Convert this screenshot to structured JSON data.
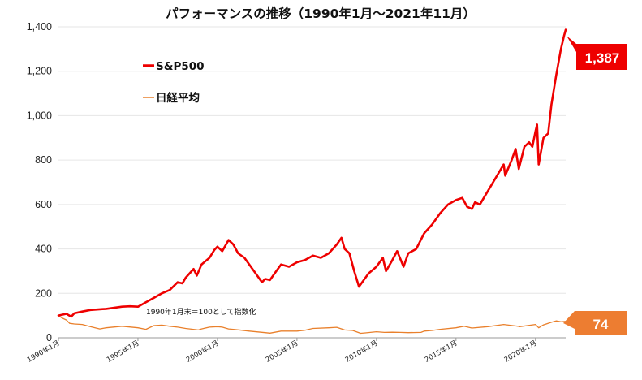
{
  "chart_data": {
    "type": "line",
    "title": "パフォーマンスの推移（1990年1月～2021年11月）",
    "note": "1990年1月末＝100として指数化",
    "ylim": [
      0,
      1400
    ],
    "yticks": [
      "0",
      "200",
      "400",
      "600",
      "800",
      "1,000",
      "1,200",
      "1,400"
    ],
    "ytick_values": [
      0,
      200,
      400,
      600,
      800,
      1000,
      1200,
      1400
    ],
    "xlim": [
      1990.0,
      2021.9
    ],
    "xticks": [
      "1990年1月",
      "1995年1月",
      "2000年1月",
      "2005年1月",
      "2010年1月",
      "2015年1月",
      "2020年1月"
    ],
    "xtick_values": [
      1990.0,
      1995.0,
      2000.0,
      2005.0,
      2010.0,
      2015.0,
      2020.0
    ],
    "legend_position": "top-left",
    "series": [
      {
        "name": "S&P500",
        "color": "#ee0000",
        "end_label": "1,387",
        "x": [
          1990.0,
          1990.5,
          1990.8,
          1991.0,
          1991.5,
          1992.0,
          1993.0,
          1994.0,
          1994.5,
          1995.0,
          1995.5,
          1996.0,
          1996.5,
          1997.0,
          1997.5,
          1997.8,
          1998.0,
          1998.5,
          1998.7,
          1999.0,
          1999.5,
          1999.8,
          2000.0,
          2000.3,
          2000.7,
          2001.0,
          2001.3,
          2001.7,
          2002.0,
          2002.5,
          2002.8,
          2003.0,
          2003.3,
          2003.7,
          2004.0,
          2004.5,
          2005.0,
          2005.5,
          2006.0,
          2006.5,
          2007.0,
          2007.5,
          2007.8,
          2008.0,
          2008.3,
          2008.6,
          2008.9,
          2009.2,
          2009.5,
          2010.0,
          2010.4,
          2010.6,
          2011.0,
          2011.3,
          2011.7,
          2012.0,
          2012.5,
          2013.0,
          2013.5,
          2014.0,
          2014.5,
          2015.0,
          2015.4,
          2015.7,
          2016.0,
          2016.2,
          2016.5,
          2017.0,
          2017.5,
          2018.0,
          2018.1,
          2018.5,
          2018.75,
          2018.95,
          2019.3,
          2019.6,
          2019.8,
          2020.0,
          2020.1,
          2020.2,
          2020.5,
          2020.8,
          2021.0,
          2021.3,
          2021.6,
          2021.8,
          2021.9
        ],
        "values": [
          100,
          108,
          95,
          110,
          118,
          125,
          130,
          140,
          142,
          140,
          160,
          180,
          200,
          215,
          250,
          245,
          270,
          310,
          280,
          330,
          360,
          395,
          410,
          390,
          440,
          420,
          380,
          360,
          330,
          280,
          250,
          265,
          260,
          300,
          330,
          320,
          340,
          350,
          370,
          360,
          380,
          420,
          450,
          400,
          380,
          300,
          230,
          260,
          290,
          320,
          360,
          300,
          350,
          390,
          320,
          380,
          400,
          470,
          510,
          560,
          600,
          620,
          630,
          590,
          580,
          610,
          600,
          660,
          720,
          780,
          730,
          800,
          850,
          760,
          860,
          880,
          860,
          930,
          960,
          780,
          900,
          920,
          1050,
          1180,
          1300,
          1360,
          1387
        ]
      },
      {
        "name": "日経平均",
        "color": "#e9802c",
        "end_label": "74",
        "x": [
          1990.0,
          1990.2,
          1990.5,
          1990.7,
          1991.0,
          1991.5,
          1992.0,
          1992.6,
          1993.0,
          1994.0,
          1995.0,
          1995.5,
          1996.0,
          1996.5,
          1997.0,
          1997.5,
          1998.0,
          1998.8,
          1999.0,
          1999.5,
          2000.0,
          2000.3,
          2000.7,
          2001.0,
          2001.5,
          2002.0,
          2003.0,
          2003.3,
          2004.0,
          2005.0,
          2005.5,
          2006.0,
          2007.0,
          2007.5,
          2008.0,
          2008.5,
          2009.0,
          2009.3,
          2010.0,
          2010.5,
          2011.0,
          2011.5,
          2012.0,
          2012.8,
          2013.0,
          2013.5,
          2014.0,
          2015.0,
          2015.5,
          2016.0,
          2017.0,
          2018.0,
          2018.9,
          2019.0,
          2020.0,
          2020.2,
          2020.5,
          2021.0,
          2021.3,
          2021.6,
          2021.9
        ],
        "values": [
          100,
          90,
          80,
          65,
          62,
          60,
          50,
          40,
          45,
          52,
          45,
          38,
          55,
          57,
          52,
          48,
          42,
          35,
          40,
          48,
          50,
          48,
          40,
          38,
          34,
          30,
          23,
          21,
          30,
          30,
          34,
          42,
          45,
          47,
          35,
          33,
          20,
          22,
          27,
          24,
          25,
          24,
          23,
          24,
          30,
          33,
          38,
          45,
          52,
          44,
          50,
          60,
          52,
          50,
          60,
          45,
          58,
          70,
          76,
          72,
          74
        ]
      }
    ]
  }
}
